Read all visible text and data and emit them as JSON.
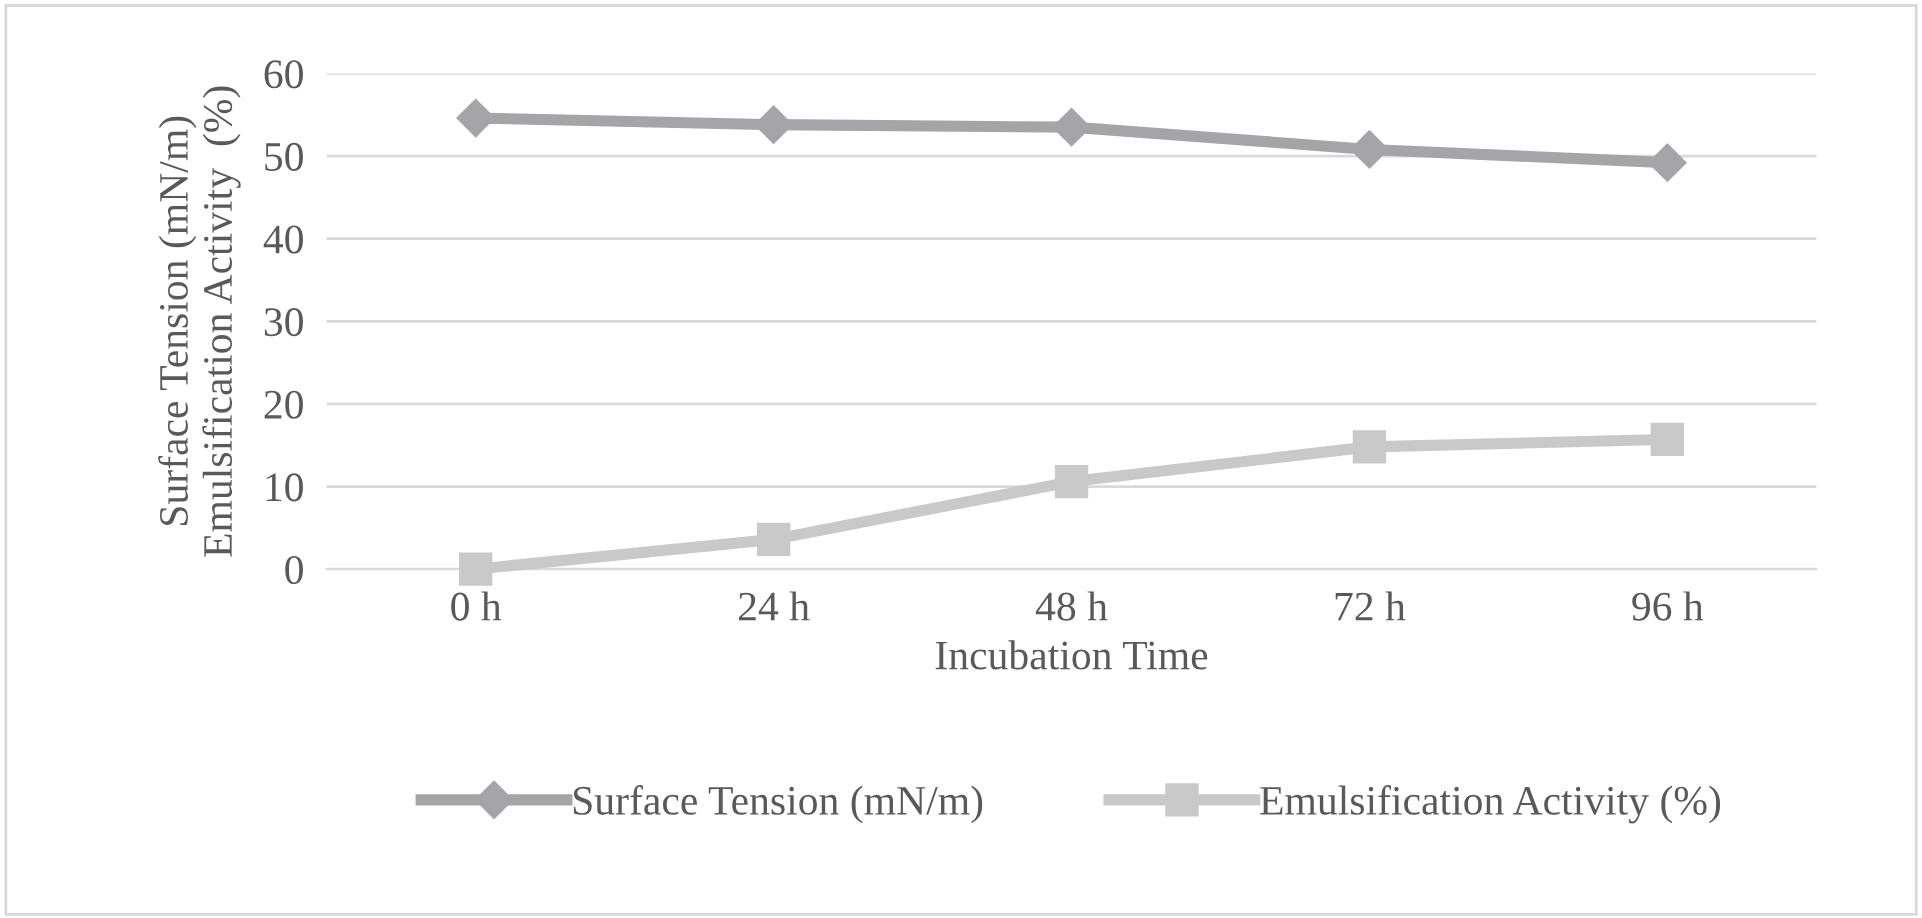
{
  "chart_data": {
    "type": "line",
    "xlabel": "Incubation Time",
    "ylabel": "Surface Tension (mN/m)\nEmulsification Activity  (%)",
    "categories": [
      "0 h",
      "24 h",
      "48 h",
      "72 h",
      "96 h"
    ],
    "series": [
      {
        "name": "Surface Tension (mN/m)",
        "color": "#a5a5a7",
        "marker": "diamond",
        "values": [
          54.6,
          53.8,
          53.5,
          50.8,
          49.2
        ]
      },
      {
        "name": "Emulsification Activity (%)",
        "color": "#c9c9c9",
        "marker": "square",
        "values": [
          0,
          3.6,
          10.6,
          14.8,
          15.7
        ]
      }
    ],
    "ylim": [
      0,
      60
    ],
    "yticks": [
      0,
      10,
      20,
      30,
      40,
      50,
      60
    ],
    "grid": "y",
    "legend": "bottom"
  }
}
